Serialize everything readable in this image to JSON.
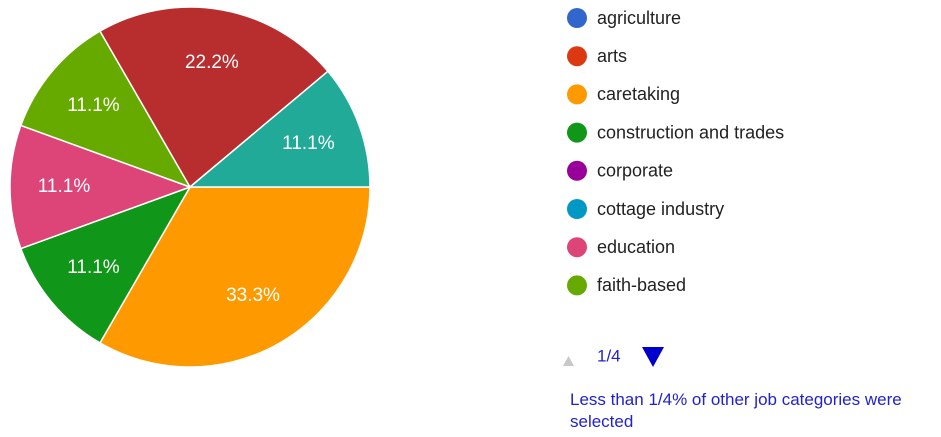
{
  "chart_data": {
    "type": "pie",
    "values": [
      33.3,
      11.1,
      11.1,
      11.1,
      22.2,
      11.1
    ],
    "value_labels": [
      "33.3%",
      "11.1%",
      "11.1%",
      "11.1%",
      "22.2%",
      "11.1%"
    ],
    "colors": [
      "#ff9900",
      "#109618",
      "#dd4477",
      "#66aa00",
      "#b82e2e",
      "#22aa99"
    ],
    "legend": {
      "items": [
        {
          "name": "agriculture",
          "color": "#3366cc"
        },
        {
          "name": "arts",
          "color": "#dc3912"
        },
        {
          "name": "caretaking",
          "color": "#ff9900"
        },
        {
          "name": "construction and trades",
          "color": "#109618"
        },
        {
          "name": "corporate",
          "color": "#990099"
        },
        {
          "name": "cottage industry",
          "color": "#0099c6"
        },
        {
          "name": "education",
          "color": "#dd4477"
        },
        {
          "name": "faith-based",
          "color": "#66aa00"
        }
      ],
      "page": "1/4"
    },
    "note": "Less than 1/4% of other job categories were selected"
  }
}
